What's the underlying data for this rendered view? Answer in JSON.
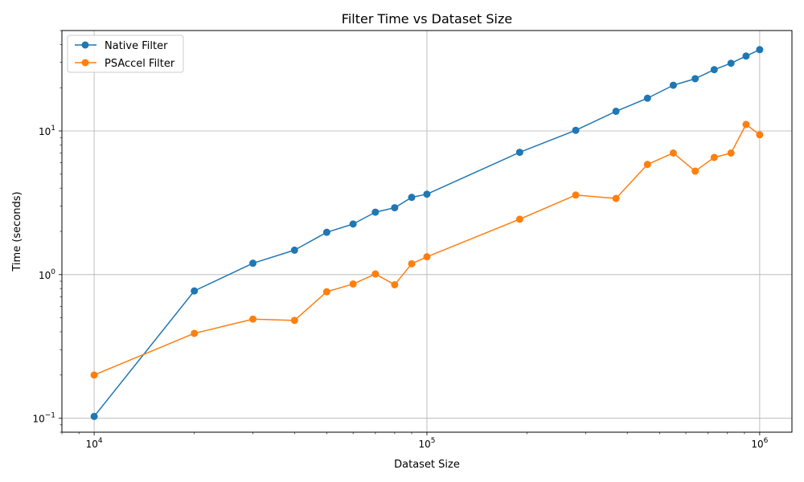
{
  "chart_data": {
    "type": "line",
    "title": "Filter Time vs Dataset Size",
    "xlabel": "Dataset Size",
    "ylabel": "Time (seconds)",
    "xscale": "log",
    "yscale": "log",
    "xlim": [
      8000,
      1250000
    ],
    "ylim": [
      0.08,
      50
    ],
    "grid": true,
    "legend_position": "top-left",
    "x_ticks": [
      {
        "value": 10000,
        "base": "10",
        "exp": "4"
      },
      {
        "value": 100000,
        "base": "10",
        "exp": "5"
      },
      {
        "value": 1000000,
        "base": "10",
        "exp": "6"
      }
    ],
    "y_ticks": [
      {
        "value": 0.1,
        "base": "10",
        "exp": "−1"
      },
      {
        "value": 1,
        "base": "10",
        "exp": "0"
      },
      {
        "value": 10,
        "base": "10",
        "exp": "1"
      }
    ],
    "x": [
      10000,
      20000,
      30000,
      40000,
      50000,
      60000,
      70000,
      80000,
      90000,
      100000,
      190000,
      280000,
      370000,
      460000,
      550000,
      640000,
      730000,
      820000,
      910000,
      1000000
    ],
    "series": [
      {
        "name": "Native Filter",
        "color": "#1f77b4",
        "values": [
          0.103,
          0.77,
          1.2,
          1.48,
          1.97,
          2.25,
          2.72,
          2.92,
          3.45,
          3.63,
          7.1,
          10.1,
          13.7,
          16.9,
          20.8,
          23.1,
          26.7,
          29.6,
          33.2,
          36.8
        ]
      },
      {
        "name": "PSAccel Filter",
        "color": "#ff7f0e",
        "values": [
          0.2,
          0.39,
          0.49,
          0.48,
          0.76,
          0.86,
          1.01,
          0.85,
          1.19,
          1.33,
          2.43,
          3.58,
          3.39,
          5.85,
          7.02,
          5.25,
          6.54,
          7.02,
          11.1,
          9.4
        ]
      }
    ]
  }
}
